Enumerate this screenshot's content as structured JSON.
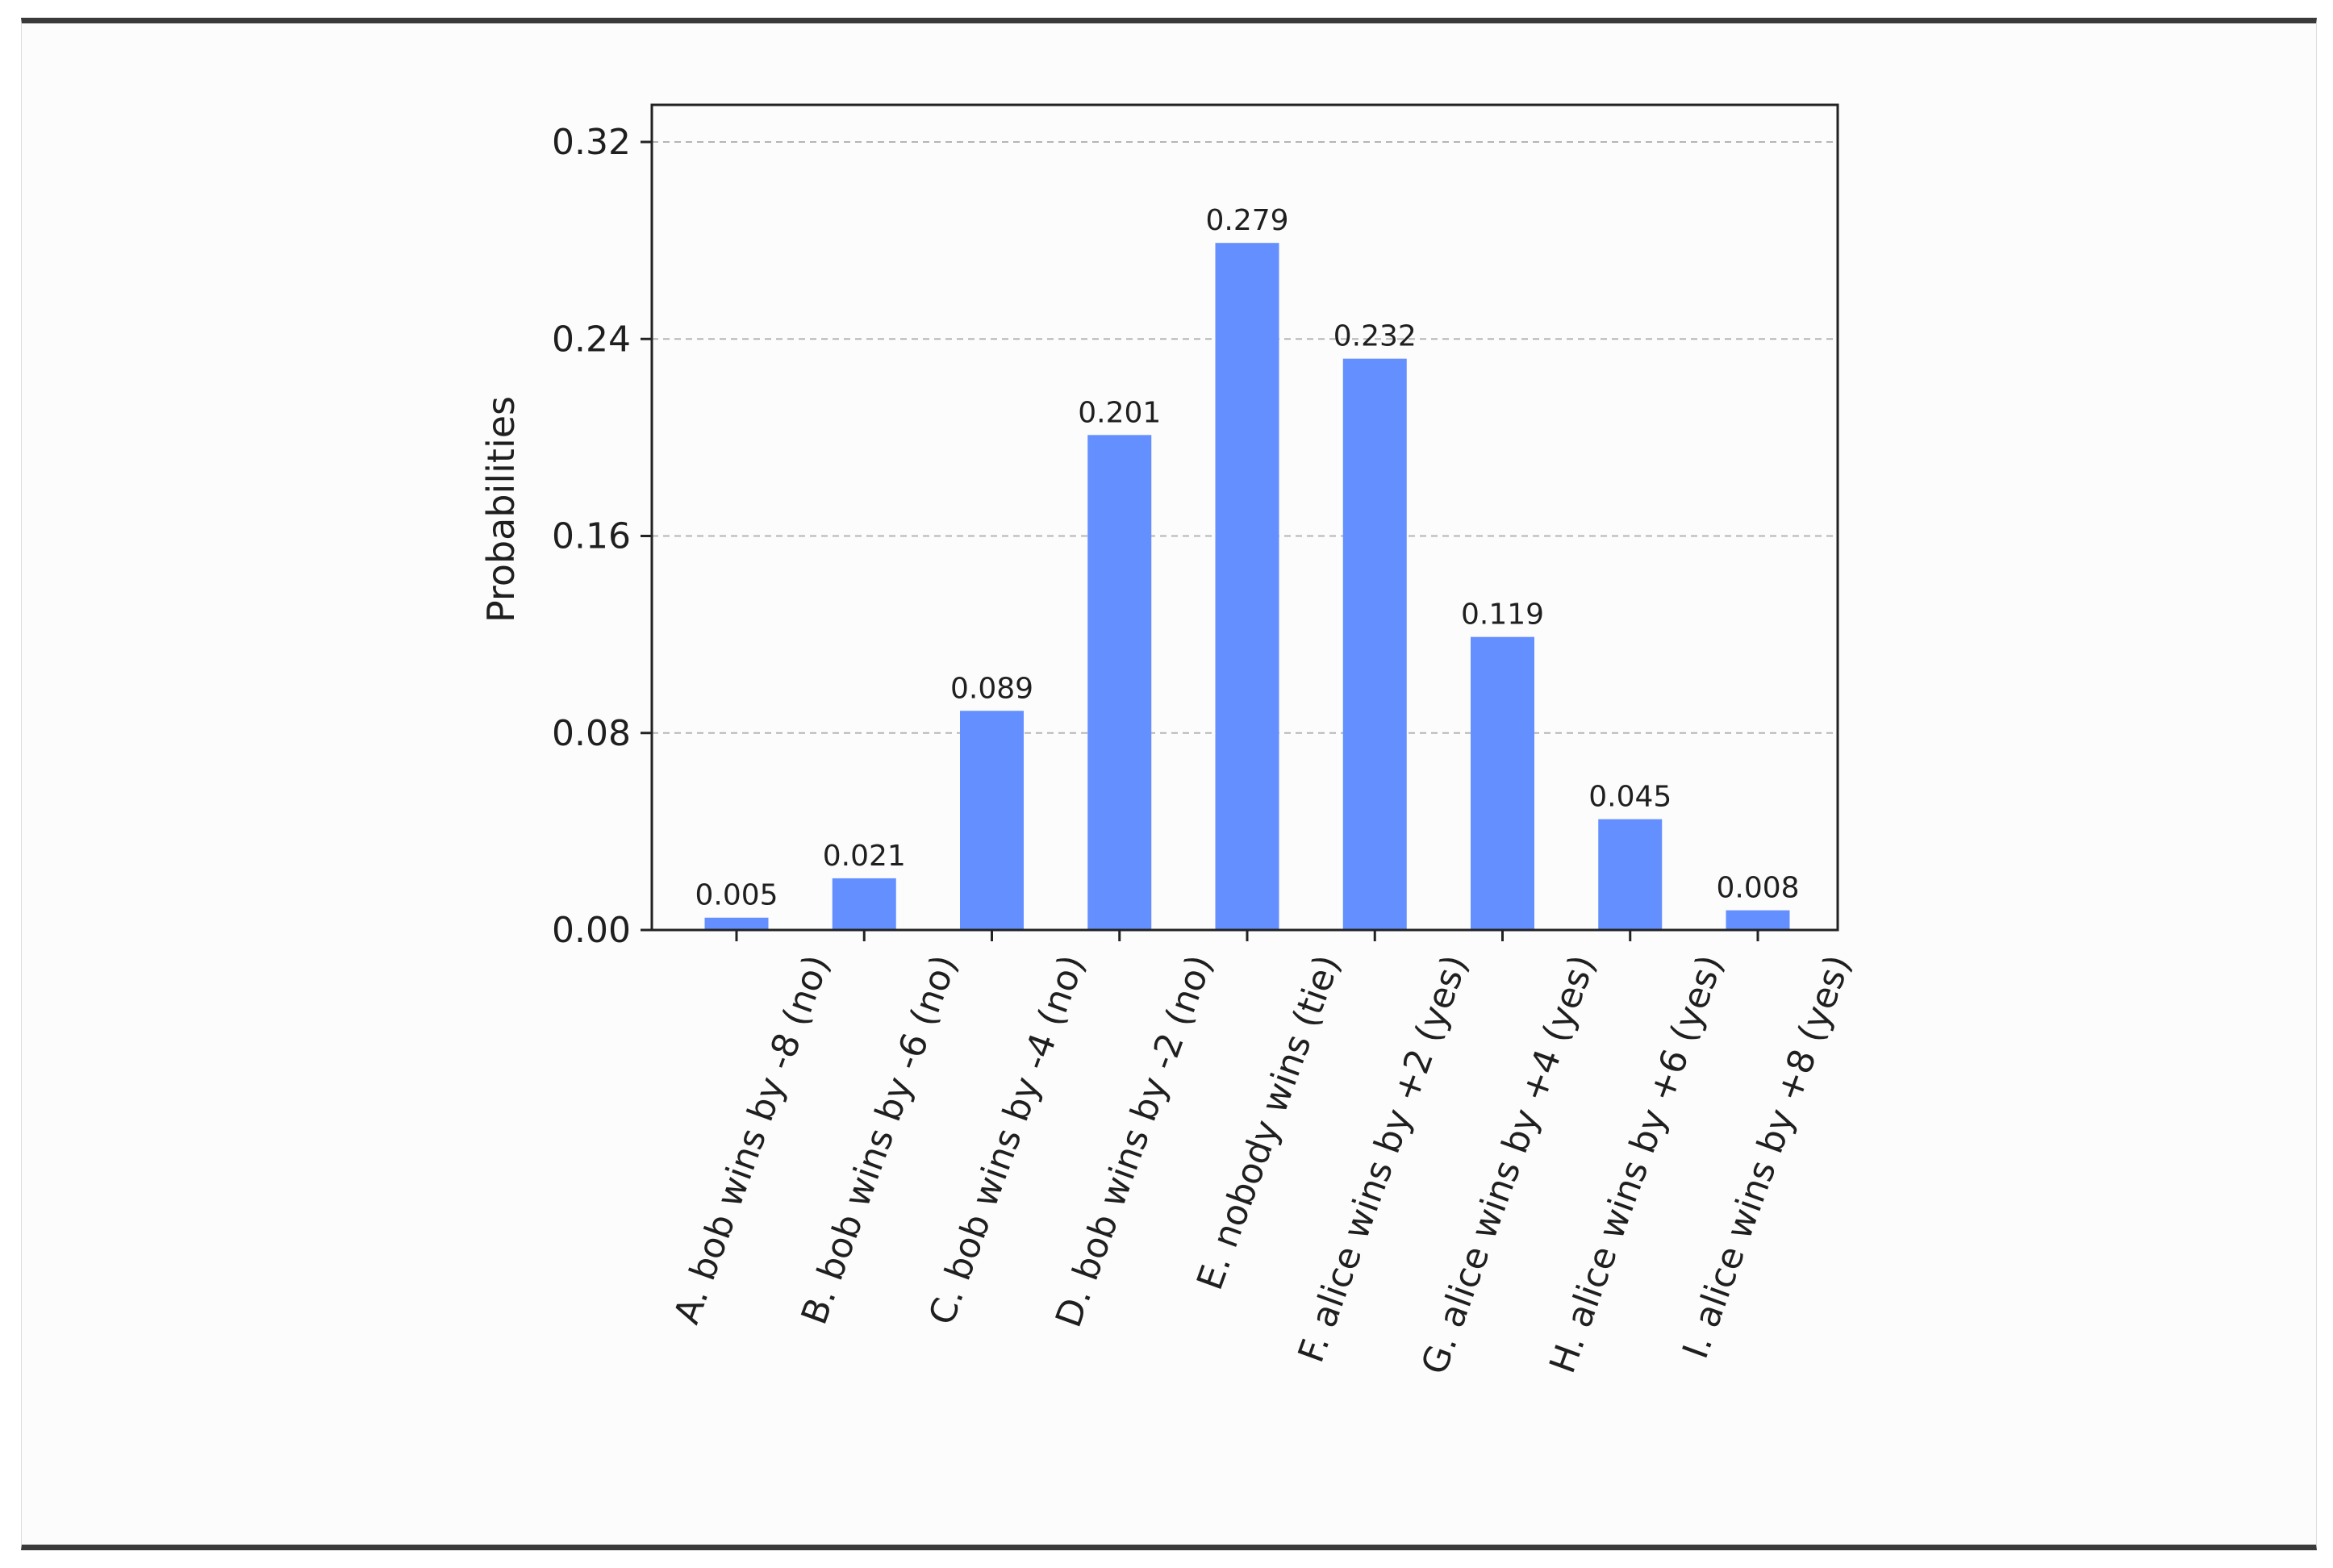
{
  "chart_data": {
    "type": "bar",
    "title": "",
    "xlabel": "",
    "ylabel": "Probabilities",
    "ylim": [
      0,
      0.32
    ],
    "yticks": [
      "0.00",
      "0.08",
      "0.16",
      "0.24",
      "0.32"
    ],
    "grid": "horizontal dashed",
    "bar_color": "#648fff",
    "categories": [
      "A. bob wins by -8 (no)",
      "B. bob wins by -6 (no)",
      "C. bob wins by -4 (no)",
      "D. bob wins by -2 (no)",
      "E. nobody wins (tie)",
      "F. alice wins by +2 (yes)",
      "G. alice wins by +4 (yes)",
      "H. alice wins by +6 (yes)",
      "I. alice wins by +8 (yes)"
    ],
    "values": [
      0.005,
      0.021,
      0.089,
      0.201,
      0.279,
      0.232,
      0.119,
      0.045,
      0.008
    ],
    "value_labels": [
      "0.005",
      "0.021",
      "0.089",
      "0.201",
      "0.279",
      "0.232",
      "0.119",
      "0.045",
      "0.008"
    ]
  }
}
